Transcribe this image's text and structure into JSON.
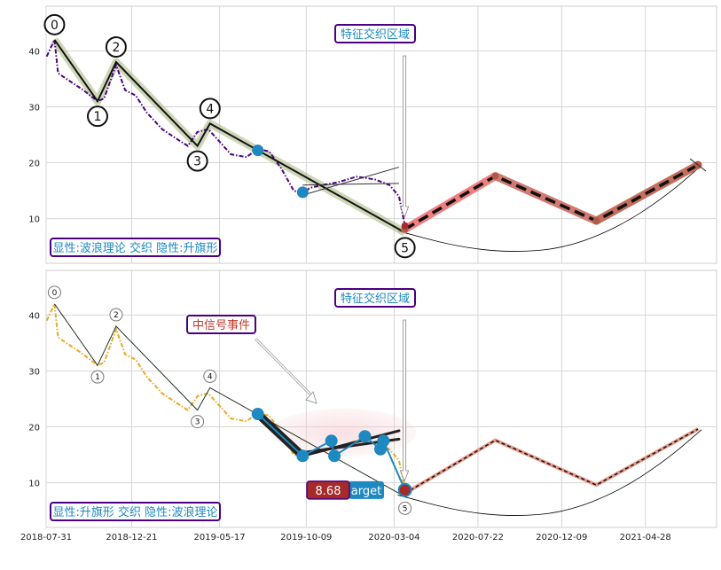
{
  "chart_data": [
    {
      "type": "line",
      "panel": "top",
      "ylim": [
        2,
        48
      ],
      "yticks": [
        10,
        20,
        30,
        40
      ],
      "xlim": [
        "2018-07-31",
        "2021-08-25"
      ],
      "grid": true,
      "price_series": {
        "color": "#4b0082",
        "style": "dash-dot",
        "x": [
          "2018-08-01",
          "2018-08-14",
          "2018-08-20",
          "2018-09-10",
          "2018-10-01",
          "2018-10-25",
          "2018-11-05",
          "2018-11-25",
          "2018-12-10",
          "2018-12-28",
          "2019-01-15",
          "2019-02-10",
          "2019-03-10",
          "2019-03-25",
          "2019-04-10",
          "2019-04-28",
          "2019-05-15",
          "2019-06-05",
          "2019-07-01",
          "2019-07-20",
          "2019-08-08",
          "2019-08-28",
          "2019-09-18",
          "2019-10-03",
          "2019-10-15",
          "2019-11-05",
          "2019-12-01",
          "2020-01-01",
          "2020-02-01",
          "2020-02-25",
          "2020-03-12",
          "2020-03-22"
        ],
        "y": [
          39,
          42,
          36,
          34.5,
          33,
          31,
          31.5,
          37.5,
          33,
          32,
          29,
          26,
          24,
          23,
          25.5,
          26,
          24,
          21.5,
          21,
          22.5,
          22,
          19,
          15,
          14.5,
          15.5,
          16,
          16.5,
          17.5,
          17,
          16,
          14,
          8.7
        ]
      },
      "wave_points": {
        "x": [
          "2018-08-14",
          "2018-10-25",
          "2018-11-25",
          "2019-04-10",
          "2019-05-01",
          "2020-03-22"
        ],
        "y": [
          42,
          31,
          38,
          23,
          27,
          7.5
        ],
        "labels": [
          "0",
          "1",
          "2",
          "3",
          "4",
          "5"
        ]
      },
      "signal_points": {
        "x": [
          "2019-07-20",
          "2019-10-03",
          "2020-03-22"
        ],
        "y": [
          22.2,
          14.7,
          8.7
        ]
      },
      "channel_lines": [
        {
          "x": [
            "2019-10-03",
            "2020-03-12"
          ],
          "y": [
            14.2,
            19.2
          ]
        },
        {
          "x": [
            "2019-10-03",
            "2020-03-12"
          ],
          "y": [
            16,
            16.3
          ]
        }
      ],
      "projection": {
        "x": [
          "2020-03-22",
          "2020-08-20",
          "2021-02-05",
          "2021-07-25"
        ],
        "y": [
          8.1,
          17.6,
          9.6,
          19.6
        ]
      },
      "arc": {
        "x": [
          "2020-03-10",
          "2020-06-15",
          "2020-09-15",
          "2020-12-15",
          "2021-03-15",
          "2021-06-01",
          "2021-07-31"
        ],
        "y": [
          7.8,
          5.0,
          3.9,
          4.7,
          8.5,
          14.0,
          19.5
        ]
      },
      "annotations": [
        {
          "text": "特征交织区域",
          "color": "#1e88c0",
          "border": "#4b0082",
          "bg": "#ffffff",
          "anchor": "top-center"
        },
        {
          "text": "显性:波浪理论 交织 隐性:升旗形",
          "color": "#1e88c0",
          "border": "#4b0082",
          "bg": "#ffffff",
          "anchor": "bottom-left"
        }
      ]
    },
    {
      "type": "line",
      "panel": "bottom",
      "ylim": [
        2,
        48
      ],
      "yticks": [
        10,
        20,
        30,
        40
      ],
      "xticks": [
        "2018-07-31",
        "2018-12-21",
        "2019-05-17",
        "2019-10-09",
        "2020-03-04",
        "2020-07-22",
        "2020-12-09",
        "2021-04-28"
      ],
      "xlim": [
        "2018-07-31",
        "2021-08-25"
      ],
      "grid": true,
      "price_series": {
        "color": "#e8a825",
        "style": "dash-dot",
        "x": [
          "2018-08-01",
          "2018-08-14",
          "2018-08-20",
          "2018-09-10",
          "2018-10-01",
          "2018-10-25",
          "2018-11-05",
          "2018-11-25",
          "2018-12-10",
          "2018-12-28",
          "2019-01-15",
          "2019-02-10",
          "2019-03-10",
          "2019-03-25",
          "2019-04-10",
          "2019-04-28",
          "2019-05-15",
          "2019-06-05",
          "2019-07-01",
          "2019-07-20",
          "2019-08-08",
          "2019-08-28",
          "2019-09-18",
          "2019-10-03",
          "2019-10-15",
          "2019-11-05",
          "2019-12-01",
          "2020-01-01",
          "2020-02-01",
          "2020-02-25",
          "2020-03-12",
          "2020-03-22"
        ],
        "y": [
          39,
          42,
          36,
          34.5,
          33,
          31,
          31.5,
          37.5,
          33,
          32,
          29,
          26,
          24,
          23,
          25.5,
          26,
          24,
          21.5,
          21,
          22.5,
          22,
          19,
          15,
          14.5,
          15.5,
          16,
          16.5,
          17.5,
          17,
          16,
          14,
          8.7
        ]
      },
      "wave_points": {
        "x": [
          "2018-08-14",
          "2018-10-25",
          "2018-11-25",
          "2019-04-10",
          "2019-05-01",
          "2020-03-22"
        ],
        "y": [
          42,
          31,
          38,
          23,
          27,
          7.5
        ],
        "labels": [
          "0",
          "1",
          "2",
          "3",
          "4",
          "5"
        ]
      },
      "flag_points": {
        "x": [
          "2019-07-20",
          "2019-10-03",
          "2019-11-20",
          "2019-11-25",
          "2020-01-15",
          "2020-02-10",
          "2020-02-15",
          "2020-03-22"
        ],
        "y": [
          22.3,
          14.8,
          17.5,
          14.8,
          18.3,
          16,
          17.5,
          8.7
        ]
      },
      "flag_lines": [
        {
          "x": [
            "2019-07-20",
            "2019-10-03"
          ],
          "y": [
            22.3,
            14.8
          ]
        },
        {
          "x": [
            "2019-10-03",
            "2020-03-12"
          ],
          "y": [
            14.8,
            19.3
          ]
        },
        {
          "x": [
            "2019-10-03",
            "2020-03-12"
          ],
          "y": [
            15.4,
            17.8
          ]
        }
      ],
      "projection": {
        "x": [
          "2020-03-22",
          "2020-08-20",
          "2021-02-05",
          "2021-07-25"
        ],
        "y": [
          8.1,
          17.6,
          9.6,
          19.6
        ]
      },
      "arc": {
        "x": [
          "2020-03-10",
          "2020-06-15",
          "2020-09-15",
          "2020-12-15",
          "2021-03-15",
          "2021-06-01",
          "2021-07-31"
        ],
        "y": [
          7.8,
          5.0,
          3.9,
          4.7,
          8.5,
          14.0,
          19.5
        ]
      },
      "annotations": [
        {
          "text": "特征交织区域",
          "color": "#1e88c0",
          "border": "#4b0082",
          "bg": "#ffffff",
          "anchor": "top-center"
        },
        {
          "text": "中信号事件",
          "color": "#c0392b",
          "border": "#4b0082",
          "bg": "#ffffff",
          "anchor": "top-left"
        },
        {
          "text": "显性:升旗形 交织 隐性:波浪理论",
          "color": "#1e88c0",
          "border": "#4b0082",
          "bg": "#ffffff",
          "anchor": "bottom-left"
        }
      ],
      "target_badge": {
        "value": "8.68",
        "label": "arget",
        "value_bg": "#a52a2a",
        "label_bg": "#1e88c0"
      }
    }
  ]
}
